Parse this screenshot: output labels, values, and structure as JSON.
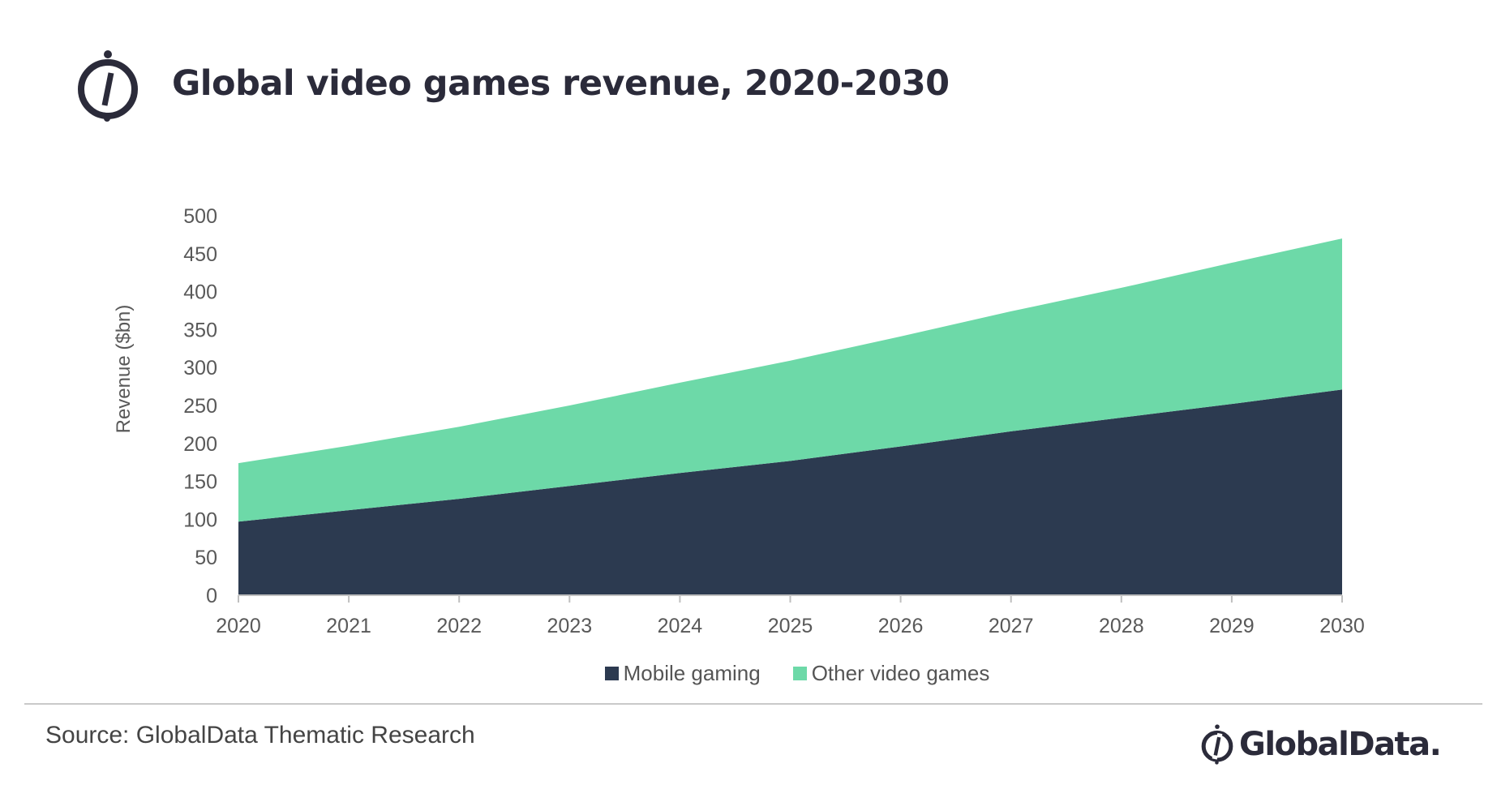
{
  "header": {
    "title": "Global video games revenue, 2020-2030",
    "logo_icon": "globaldata-symbol-icon"
  },
  "footer": {
    "source": "Source: GlobalData Thematic Research",
    "brand": "GlobalData."
  },
  "colors": {
    "mobile": "#2c3a50",
    "other": "#6dd9a8",
    "axis": "#bfbfbf",
    "text": "#595959"
  },
  "chart_data": {
    "type": "area",
    "stacked": true,
    "title": "Global video games revenue, 2020-2030",
    "xlabel": "",
    "ylabel": "Revenue ($bn)",
    "ylim": [
      0,
      500
    ],
    "yticks": [
      0,
      50,
      100,
      150,
      200,
      250,
      300,
      350,
      400,
      450,
      500
    ],
    "x": [
      "2020",
      "2021",
      "2022",
      "2023",
      "2024",
      "2025",
      "2026",
      "2027",
      "2028",
      "2029",
      "2030"
    ],
    "grid": false,
    "legend": "bottom",
    "series": [
      {
        "name": "Mobile gaming",
        "color": "#2c3a50",
        "values": [
          97,
          112,
          127,
          144,
          161,
          177,
          196,
          216,
          234,
          252,
          271
        ]
      },
      {
        "name": "Other video games",
        "color": "#6dd9a8",
        "values": [
          77,
          85,
          95,
          106,
          119,
          132,
          145,
          158,
          171,
          186,
          199
        ]
      }
    ]
  }
}
